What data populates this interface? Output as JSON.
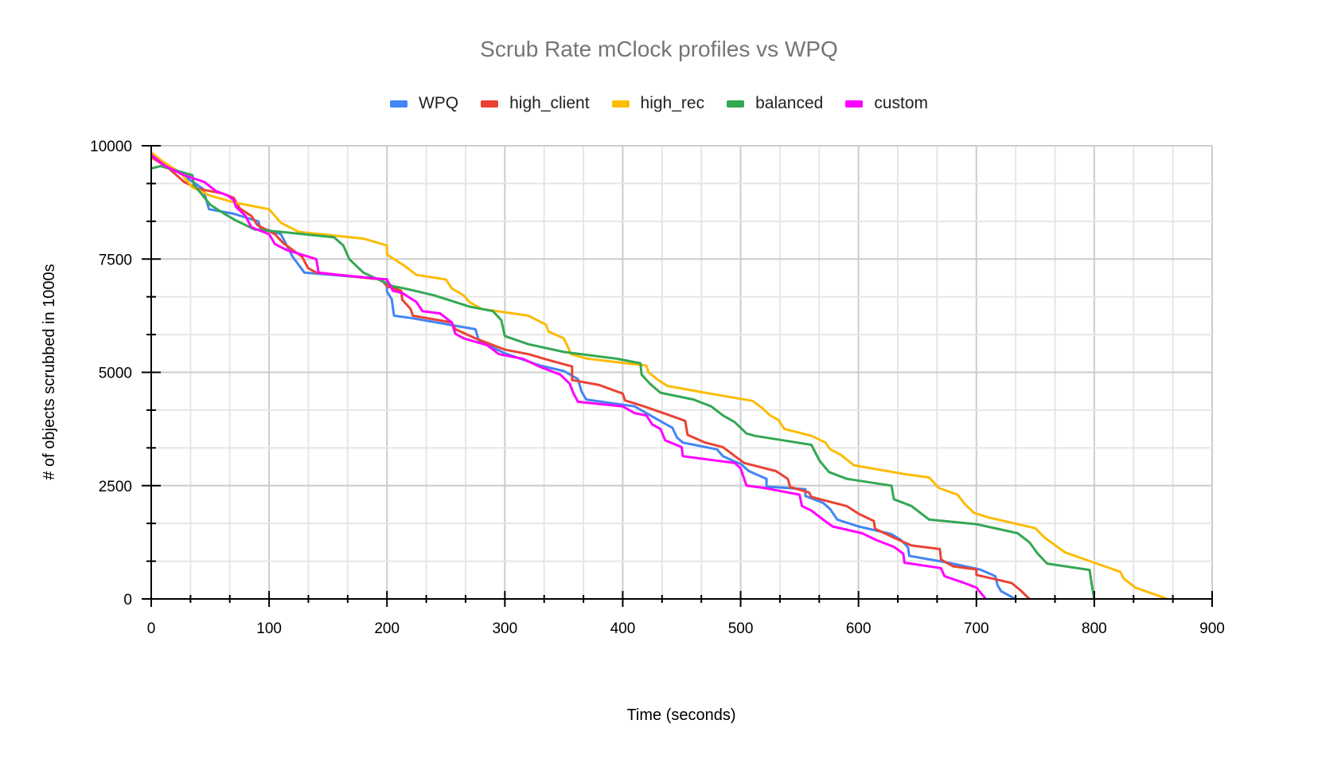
{
  "chart_data": {
    "type": "line",
    "title": "Scrub Rate mClock profiles vs WPQ",
    "xlabel": "Time (seconds)",
    "ylabel": "# of objects scrubbed in 1000s",
    "xlim": [
      0,
      900
    ],
    "ylim": [
      0,
      10000
    ],
    "x_ticks": [
      "0",
      "100",
      "200",
      "300",
      "400",
      "500",
      "600",
      "700",
      "800",
      "900"
    ],
    "y_ticks": [
      "0",
      "2500",
      "5000",
      "7500",
      "10000"
    ],
    "grid": true,
    "legend_position": "top",
    "series": [
      {
        "name": "WPQ",
        "color": "#4285f4",
        "points": [
          [
            0,
            9800
          ],
          [
            17,
            9520
          ],
          [
            44,
            9050
          ],
          [
            49,
            8600
          ],
          [
            70,
            8500
          ],
          [
            91,
            8330
          ],
          [
            92,
            8200
          ],
          [
            110,
            8050
          ],
          [
            120,
            7550
          ],
          [
            130,
            7200
          ],
          [
            200,
            7050
          ],
          [
            200,
            6780
          ],
          [
            204,
            6620
          ],
          [
            206,
            6250
          ],
          [
            220,
            6200
          ],
          [
            275,
            5950
          ],
          [
            278,
            5700
          ],
          [
            300,
            5420
          ],
          [
            330,
            5150
          ],
          [
            350,
            5030
          ],
          [
            362,
            4850
          ],
          [
            365,
            4580
          ],
          [
            369,
            4400
          ],
          [
            410,
            4250
          ],
          [
            420,
            4100
          ],
          [
            437,
            3850
          ],
          [
            442,
            3780
          ],
          [
            446,
            3560
          ],
          [
            451,
            3450
          ],
          [
            480,
            3300
          ],
          [
            485,
            3150
          ],
          [
            495,
            3030
          ],
          [
            500,
            2980
          ],
          [
            507,
            2820
          ],
          [
            522,
            2650
          ],
          [
            522,
            2480
          ],
          [
            555,
            2420
          ],
          [
            555,
            2270
          ],
          [
            570,
            2120
          ],
          [
            576,
            1980
          ],
          [
            582,
            1750
          ],
          [
            600,
            1600
          ],
          [
            628,
            1430
          ],
          [
            636,
            1300
          ],
          [
            642,
            1140
          ],
          [
            643,
            950
          ],
          [
            676,
            800
          ],
          [
            703,
            650
          ],
          [
            712,
            550
          ],
          [
            716,
            500
          ],
          [
            718,
            300
          ],
          [
            721,
            170
          ],
          [
            733,
            0
          ]
        ]
      },
      {
        "name": "high_client",
        "color": "#ea4335",
        "points": [
          [
            0,
            9750
          ],
          [
            15,
            9500
          ],
          [
            28,
            9200
          ],
          [
            40,
            9050
          ],
          [
            60,
            8950
          ],
          [
            70,
            8850
          ],
          [
            75,
            8620
          ],
          [
            85,
            8450
          ],
          [
            90,
            8250
          ],
          [
            105,
            8050
          ],
          [
            112,
            7850
          ],
          [
            128,
            7550
          ],
          [
            133,
            7300
          ],
          [
            140,
            7200
          ],
          [
            195,
            7050
          ],
          [
            200,
            6900
          ],
          [
            212,
            6800
          ],
          [
            213,
            6600
          ],
          [
            220,
            6400
          ],
          [
            222,
            6250
          ],
          [
            255,
            6100
          ],
          [
            258,
            5950
          ],
          [
            275,
            5750
          ],
          [
            300,
            5500
          ],
          [
            320,
            5400
          ],
          [
            340,
            5250
          ],
          [
            357,
            5130
          ],
          [
            357,
            4830
          ],
          [
            380,
            4720
          ],
          [
            400,
            4530
          ],
          [
            402,
            4380
          ],
          [
            418,
            4250
          ],
          [
            440,
            4050
          ],
          [
            453,
            3930
          ],
          [
            455,
            3620
          ],
          [
            470,
            3450
          ],
          [
            485,
            3350
          ],
          [
            503,
            3000
          ],
          [
            530,
            2820
          ],
          [
            540,
            2650
          ],
          [
            542,
            2470
          ],
          [
            558,
            2350
          ],
          [
            560,
            2250
          ],
          [
            590,
            2050
          ],
          [
            600,
            1880
          ],
          [
            613,
            1720
          ],
          [
            614,
            1550
          ],
          [
            631,
            1340
          ],
          [
            645,
            1180
          ],
          [
            669,
            1100
          ],
          [
            670,
            870
          ],
          [
            680,
            720
          ],
          [
            700,
            650
          ],
          [
            700,
            530
          ],
          [
            730,
            350
          ],
          [
            737,
            200
          ],
          [
            745,
            0
          ]
        ]
      },
      {
        "name": "high_rec",
        "color": "#fbbc04",
        "points": [
          [
            0,
            9850
          ],
          [
            10,
            9650
          ],
          [
            25,
            9400
          ],
          [
            35,
            9080
          ],
          [
            50,
            8900
          ],
          [
            70,
            8750
          ],
          [
            100,
            8600
          ],
          [
            110,
            8300
          ],
          [
            125,
            8100
          ],
          [
            180,
            7950
          ],
          [
            200,
            7800
          ],
          [
            200,
            7600
          ],
          [
            215,
            7350
          ],
          [
            225,
            7150
          ],
          [
            250,
            7050
          ],
          [
            255,
            6850
          ],
          [
            265,
            6700
          ],
          [
            270,
            6550
          ],
          [
            280,
            6400
          ],
          [
            320,
            6250
          ],
          [
            335,
            6050
          ],
          [
            337,
            5900
          ],
          [
            350,
            5750
          ],
          [
            354,
            5530
          ],
          [
            356,
            5400
          ],
          [
            370,
            5300
          ],
          [
            420,
            5150
          ],
          [
            422,
            5000
          ],
          [
            430,
            4830
          ],
          [
            438,
            4700
          ],
          [
            470,
            4550
          ],
          [
            510,
            4370
          ],
          [
            518,
            4220
          ],
          [
            525,
            4050
          ],
          [
            532,
            3950
          ],
          [
            537,
            3750
          ],
          [
            560,
            3600
          ],
          [
            572,
            3450
          ],
          [
            576,
            3300
          ],
          [
            585,
            3180
          ],
          [
            596,
            2950
          ],
          [
            640,
            2750
          ],
          [
            660,
            2680
          ],
          [
            668,
            2450
          ],
          [
            684,
            2300
          ],
          [
            690,
            2100
          ],
          [
            698,
            1900
          ],
          [
            710,
            1800
          ],
          [
            750,
            1560
          ],
          [
            758,
            1350
          ],
          [
            766,
            1200
          ],
          [
            775,
            1030
          ],
          [
            800,
            800
          ],
          [
            822,
            600
          ],
          [
            825,
            450
          ],
          [
            835,
            250
          ],
          [
            862,
            0
          ]
        ]
      },
      {
        "name": "balanced",
        "color": "#34a853",
        "points": [
          [
            0,
            9500
          ],
          [
            8,
            9550
          ],
          [
            35,
            9350
          ],
          [
            36,
            9150
          ],
          [
            50,
            8700
          ],
          [
            62,
            8500
          ],
          [
            72,
            8350
          ],
          [
            88,
            8150
          ],
          [
            110,
            8100
          ],
          [
            155,
            7980
          ],
          [
            163,
            7800
          ],
          [
            168,
            7500
          ],
          [
            180,
            7200
          ],
          [
            205,
            6900
          ],
          [
            215,
            6850
          ],
          [
            240,
            6700
          ],
          [
            270,
            6450
          ],
          [
            290,
            6350
          ],
          [
            297,
            6150
          ],
          [
            300,
            5800
          ],
          [
            320,
            5620
          ],
          [
            350,
            5450
          ],
          [
            395,
            5300
          ],
          [
            415,
            5200
          ],
          [
            416,
            4950
          ],
          [
            423,
            4750
          ],
          [
            432,
            4550
          ],
          [
            460,
            4400
          ],
          [
            475,
            4250
          ],
          [
            485,
            4050
          ],
          [
            495,
            3900
          ],
          [
            505,
            3650
          ],
          [
            512,
            3600
          ],
          [
            560,
            3400
          ],
          [
            567,
            3050
          ],
          [
            575,
            2800
          ],
          [
            590,
            2650
          ],
          [
            628,
            2500
          ],
          [
            630,
            2200
          ],
          [
            645,
            2050
          ],
          [
            660,
            1750
          ],
          [
            700,
            1650
          ],
          [
            735,
            1450
          ],
          [
            745,
            1250
          ],
          [
            752,
            1000
          ],
          [
            760,
            780
          ],
          [
            796,
            640
          ],
          [
            798,
            300
          ],
          [
            800,
            0
          ]
        ]
      },
      {
        "name": "custom",
        "color": "#ff00ff",
        "points": [
          [
            0,
            9800
          ],
          [
            12,
            9550
          ],
          [
            28,
            9350
          ],
          [
            45,
            9200
          ],
          [
            55,
            9000
          ],
          [
            65,
            8900
          ],
          [
            70,
            8800
          ],
          [
            72,
            8650
          ],
          [
            80,
            8450
          ],
          [
            85,
            8200
          ],
          [
            100,
            8050
          ],
          [
            105,
            7830
          ],
          [
            115,
            7700
          ],
          [
            140,
            7500
          ],
          [
            142,
            7200
          ],
          [
            160,
            7150
          ],
          [
            200,
            7050
          ],
          [
            205,
            6800
          ],
          [
            213,
            6750
          ],
          [
            225,
            6550
          ],
          [
            230,
            6350
          ],
          [
            245,
            6300
          ],
          [
            255,
            6100
          ],
          [
            258,
            5850
          ],
          [
            265,
            5750
          ],
          [
            285,
            5600
          ],
          [
            295,
            5400
          ],
          [
            315,
            5300
          ],
          [
            330,
            5120
          ],
          [
            347,
            4950
          ],
          [
            355,
            4750
          ],
          [
            358,
            4550
          ],
          [
            362,
            4350
          ],
          [
            400,
            4250
          ],
          [
            410,
            4100
          ],
          [
            420,
            4050
          ],
          [
            425,
            3850
          ],
          [
            432,
            3750
          ],
          [
            436,
            3500
          ],
          [
            450,
            3350
          ],
          [
            451,
            3150
          ],
          [
            495,
            3000
          ],
          [
            500,
            2880
          ],
          [
            503,
            2650
          ],
          [
            505,
            2500
          ],
          [
            520,
            2450
          ],
          [
            550,
            2300
          ],
          [
            552,
            2050
          ],
          [
            560,
            1950
          ],
          [
            570,
            1750
          ],
          [
            578,
            1600
          ],
          [
            603,
            1450
          ],
          [
            615,
            1300
          ],
          [
            630,
            1150
          ],
          [
            638,
            1000
          ],
          [
            639,
            800
          ],
          [
            670,
            680
          ],
          [
            673,
            500
          ],
          [
            690,
            350
          ],
          [
            700,
            250
          ],
          [
            708,
            0
          ]
        ]
      }
    ]
  }
}
